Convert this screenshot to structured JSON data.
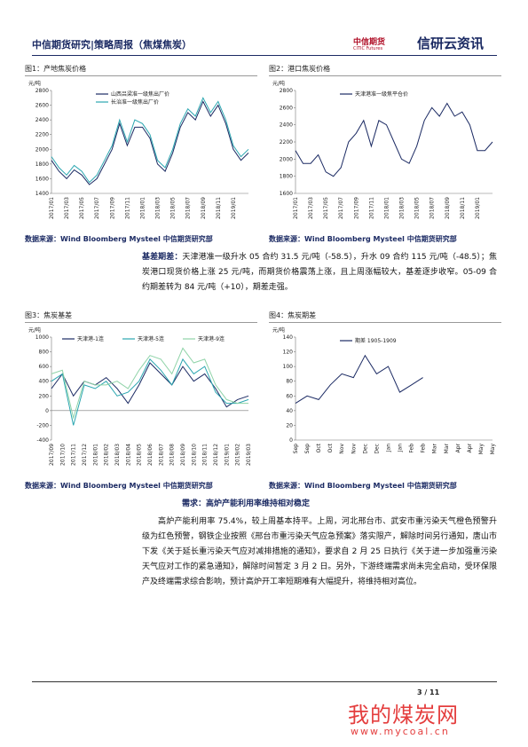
{
  "header": {
    "title": "中信期货研究|策略周报（焦煤焦炭）",
    "logo_name": "中信期货",
    "logo_en": "CITIC Futures",
    "brand": "信研云资讯"
  },
  "chart_data": [
    {
      "type": "line",
      "title": "图1：产地焦炭价格",
      "unit": "元/吨",
      "categories": [
        "2017/01",
        null,
        "2017/03",
        null,
        "2017/05",
        null,
        "2017/07",
        null,
        "2017/09",
        null,
        "2017/11",
        null,
        "2018/01",
        null,
        "2018/03",
        null,
        "2018/05",
        null,
        "2018/07",
        null,
        "2018/09",
        null,
        "2018/11",
        null,
        "2019/01",
        null,
        null
      ],
      "series": [
        {
          "name": "山西吕梁准一级焦出厂价",
          "color": "#1b2a63",
          "values": [
            1850,
            1700,
            1600,
            1720,
            1650,
            1520,
            1600,
            1800,
            2000,
            2350,
            2050,
            2300,
            2300,
            2150,
            1800,
            1700,
            1950,
            2300,
            2500,
            2400,
            2650,
            2450,
            2600,
            2350,
            2000,
            1850,
            1950
          ]
        },
        {
          "name": "长治准一级焦出厂价",
          "color": "#2aa6b0",
          "values": [
            1900,
            1750,
            1650,
            1780,
            1700,
            1550,
            1650,
            1850,
            2050,
            2400,
            2100,
            2400,
            2350,
            2200,
            1850,
            1750,
            2000,
            2350,
            2550,
            2450,
            2700,
            2500,
            2650,
            2400,
            2050,
            1900,
            2000
          ]
        }
      ],
      "ylim": [
        1400,
        2800
      ],
      "yticks": [
        1400,
        1600,
        1800,
        2000,
        2200,
        2400,
        2600,
        2800
      ]
    },
    {
      "type": "line",
      "title": "图2：港口焦炭价格",
      "unit": "元/吨",
      "categories": [
        "2017/01",
        null,
        "2017/03",
        null,
        "2017/05",
        null,
        "2017/07",
        null,
        "2017/09",
        null,
        "2017/11",
        null,
        "2018/01",
        null,
        "2018/03",
        null,
        "2018/05",
        null,
        "2018/07",
        null,
        "2018/09",
        null,
        "2018/11",
        null,
        "2019/01",
        null,
        null
      ],
      "series": [
        {
          "name": "天津港准一级焦平仓价",
          "color": "#1b2a63",
          "values": [
            2100,
            1950,
            1950,
            2050,
            1850,
            1800,
            1900,
            2200,
            2300,
            2450,
            2150,
            2450,
            2400,
            2200,
            2000,
            1950,
            2150,
            2450,
            2600,
            2500,
            2650,
            2500,
            2550,
            2400,
            2100,
            2100,
            2200
          ]
        }
      ],
      "ylim": [
        1600,
        2800
      ],
      "yticks": [
        1600,
        1800,
        2000,
        2200,
        2400,
        2600,
        2800
      ]
    },
    {
      "type": "line",
      "title": "图3：焦炭基差",
      "unit": "元/吨",
      "categories": [
        "2017/09",
        "2017/10",
        "2017/11",
        "2017/12",
        "2018/01",
        "2018/02",
        "2018/03",
        "2018/04",
        "2018/05",
        "2018/06",
        "2018/07",
        "2018/08",
        "2018/09",
        "2018/10",
        "2018/11",
        "2018/12",
        "2019/01",
        "2019/02",
        "2019/03"
      ],
      "series": [
        {
          "name": "天津港-1连",
          "color": "#1b2a63",
          "values": [
            300,
            500,
            200,
            400,
            350,
            450,
            300,
            100,
            350,
            650,
            500,
            350,
            600,
            400,
            500,
            300,
            50,
            150,
            200
          ]
        },
        {
          "name": "天津港-5连",
          "color": "#2aa6b0",
          "values": [
            400,
            500,
            -200,
            350,
            300,
            400,
            200,
            250,
            400,
            700,
            550,
            350,
            700,
            500,
            600,
            250,
            100,
            100,
            150
          ]
        },
        {
          "name": "天津港-9连",
          "color": "#8fd3a8",
          "values": [
            500,
            550,
            -100,
            400,
            350,
            350,
            400,
            300,
            550,
            750,
            700,
            500,
            850,
            650,
            700,
            350,
            150,
            100,
            100
          ]
        }
      ],
      "ylim": [
        -400,
        1000
      ],
      "yticks": [
        -400,
        -200,
        0,
        200,
        400,
        600,
        800,
        1000
      ]
    },
    {
      "type": "line",
      "title": "图4：焦炭期差",
      "unit": "元/吨",
      "categories": [
        "Sep",
        "Sep",
        "Oct",
        "Oct",
        "Nov",
        "Nov",
        "Dec",
        "Dec",
        "Jan",
        "Jan",
        "Feb",
        "Feb",
        "Mar",
        "Mar",
        "Apr",
        "Apr",
        "May",
        "May"
      ],
      "series": [
        {
          "name": "期差 1905-1909",
          "color": "#1b2a63",
          "values": [
            50,
            60,
            55,
            75,
            90,
            85,
            115,
            90,
            100,
            65,
            75,
            85,
            null,
            null,
            null,
            null,
            null,
            null
          ]
        }
      ],
      "ylim": [
        0,
        140
      ],
      "yticks": [
        0,
        20,
        40,
        60,
        80,
        100,
        120,
        140
      ]
    }
  ],
  "sources": [
    "数据来源：Wind Bloomberg Mysteel 中信期货研究部",
    "数据来源：Wind Bloomberg Mysteel 中信期货研究部",
    "数据来源：Wind Bloomberg Mysteel 中信期货研究部",
    "数据来源：Wind Bloomberg Mysteel 中信期货研究部"
  ],
  "basis": {
    "lead": "基差期差：",
    "text": "天津港准一级升水 05 合约 31.5 元/吨（-58.5），升水 09 合约 115 元/吨（-48.5）；焦炭港口现货价格上涨 25 元/吨，而期货价格震荡上涨，且上周涨幅较大，基差逐步收窄。05-09 合约期差转为 84 元/吨（+10），期差走强。"
  },
  "demand": {
    "heading": "需求：高炉产能利用率维持相对稳定",
    "text": "高炉产能利用率 75.4%，较上周基本持平。上周，河北邢台市、武安市重污染天气橙色预警升级为红色预警，钢铁企业按照《邢台市重污染天气应急预案》落实限产，解除时间另行通知，唐山市下发《关于延长重污染天气应对减排措施的通知》，要求自 2 月 25 日执行《关于进一步加强重污染天气应对工作的紧急通知》，解除时间暂定 3 月 2 日。另外，下游终端需求尚未完全启动，受环保限产及终端需求综合影响，预计高炉开工率短期难有大幅提升，将维持相对高位。"
  },
  "footer": {
    "page": "3 / 11"
  },
  "watermark": {
    "name": "我的煤炭网",
    "url": "www.mycoal.cn"
  }
}
